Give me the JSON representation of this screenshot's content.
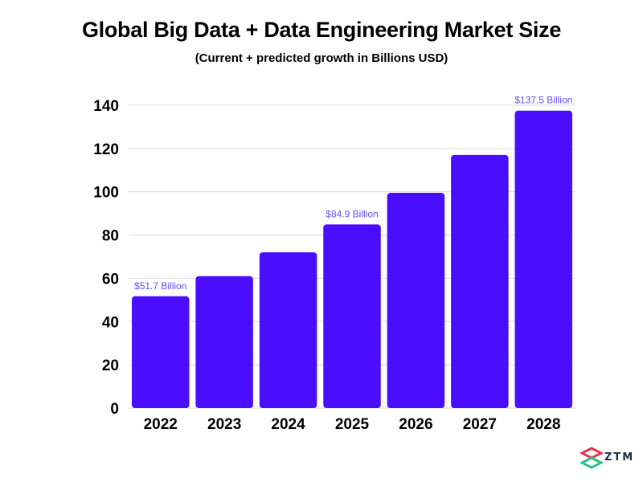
{
  "chart_data": {
    "type": "bar",
    "title": "Global Big Data + Data Engineering Market Size",
    "subtitle": "(Current + predicted growth in Billions USD)",
    "categories": [
      "2022",
      "2023",
      "2024",
      "2025",
      "2026",
      "2027",
      "2028"
    ],
    "values": [
      51.7,
      61,
      72,
      84.9,
      99.5,
      117,
      137.5
    ],
    "data_labels": [
      "$51.7 Billion",
      "",
      "",
      "$84.9 Billion",
      "",
      "",
      "$137.5 Billion"
    ],
    "ylim": [
      0,
      140
    ],
    "yticks": [
      0,
      20,
      40,
      60,
      80,
      100,
      120,
      140
    ],
    "xlabel": "",
    "ylabel": "",
    "grid": true,
    "bar_color": "#4a0dff",
    "label_color": "#6a4dff",
    "grid_color": "#d9d9d9"
  },
  "brand": {
    "logo_text": "ZTM",
    "logo_colors": [
      "#e8334a",
      "#2bbf8a"
    ]
  }
}
